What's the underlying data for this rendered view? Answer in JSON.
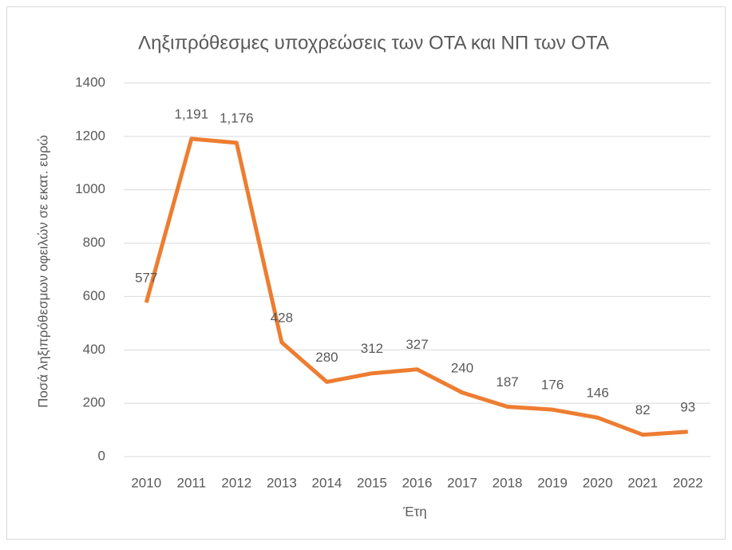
{
  "chart_data": {
    "type": "line",
    "title": "Ληξιπρόθεσμες υποχρεώσεις των ΟΤΑ και ΝΠ των ΟΤΑ",
    "x_label": "Έτη",
    "y_label": "Ποσά ληξιπρόθεσμων οφειλών σε εκατ. ευρώ",
    "categories": [
      "2010",
      "2011",
      "2012",
      "2013",
      "2014",
      "2015",
      "2016",
      "2017",
      "2018",
      "2019",
      "2020",
      "2021",
      "2022"
    ],
    "series": [
      {
        "name": "Ληξιπρόθεσμες υποχρεώσεις",
        "color": "#ed7d31",
        "values": [
          577,
          1191,
          1176,
          428,
          280,
          312,
          327,
          240,
          187,
          176,
          146,
          82,
          93
        ],
        "value_labels": [
          "577",
          "1,191",
          "1,176",
          "428",
          "280",
          "312",
          "327",
          "240",
          "187",
          "176",
          "146",
          "82",
          "93"
        ]
      }
    ],
    "ylim": [
      0,
      1400
    ],
    "yticks": [
      0,
      200,
      400,
      600,
      800,
      1000,
      1200,
      1400
    ],
    "grid": true,
    "legend": false
  }
}
